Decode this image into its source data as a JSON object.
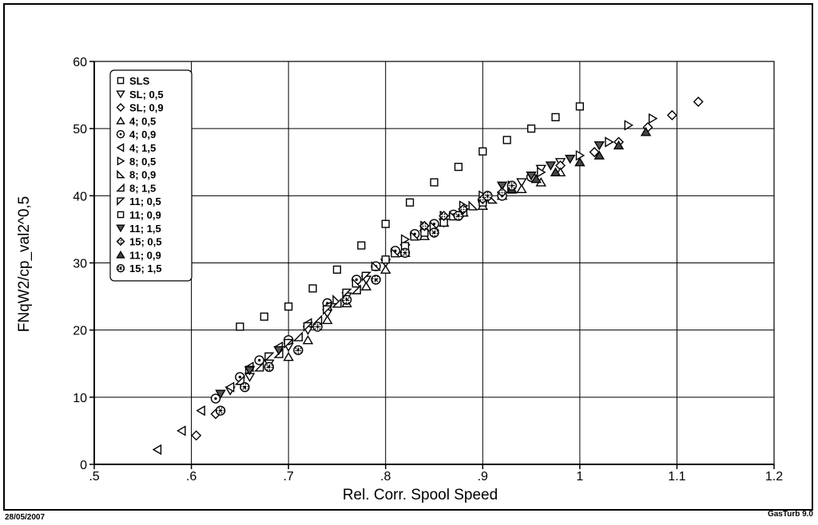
{
  "footer": {
    "date": "28/05/2007",
    "software": "GasTurb 9.0"
  },
  "chart_data": {
    "type": "scatter",
    "title": "",
    "xlabel": "Rel. Corr. Spool Speed",
    "ylabel": "FNqW2/cp_val2^0,5",
    "xlim": [
      0.5,
      1.2
    ],
    "ylim": [
      0,
      60
    ],
    "x_ticks": [
      ".5",
      ".6",
      ".7",
      ".8",
      ".9",
      "1",
      "1.1",
      "1.2"
    ],
    "y_ticks": [
      "0",
      "10",
      "20",
      "30",
      "40",
      "50",
      "60"
    ],
    "grid": true,
    "legend_position": "top-left",
    "series": [
      {
        "name": "SLS",
        "marker": "square",
        "x": [
          0.65,
          0.675,
          0.7,
          0.725,
          0.75,
          0.775,
          0.8,
          0.825,
          0.85,
          0.875,
          0.9,
          0.925,
          0.95,
          0.975,
          1.0
        ],
        "y": [
          20.5,
          22.0,
          23.5,
          26.2,
          29.0,
          32.6,
          35.8,
          39.0,
          42.0,
          44.3,
          46.6,
          48.3,
          50.0,
          51.7,
          53.3
        ]
      },
      {
        "name": "SL; 0,5",
        "marker": "triangle-down",
        "x": [
          0.64,
          0.66,
          0.68,
          0.7,
          0.72,
          0.74,
          0.76,
          0.78,
          0.8,
          0.82,
          0.84,
          0.86,
          0.88,
          0.9,
          0.92,
          0.94,
          0.96,
          0.98
        ],
        "y": [
          11.0,
          13.0,
          15.0,
          17.5,
          20.0,
          22.5,
          25.0,
          27.5,
          30.0,
          32.2,
          34.3,
          36.0,
          37.5,
          38.8,
          40.0,
          42.0,
          44.0,
          45.0
        ]
      },
      {
        "name": "SL; 0,9",
        "marker": "diamond",
        "x": [
          0.605,
          0.625,
          0.98,
          1.015,
          1.04,
          1.07,
          1.095,
          1.122
        ],
        "y": [
          4.3,
          7.5,
          44.5,
          46.5,
          48.0,
          50.2,
          52.0,
          54.0
        ]
      },
      {
        "name": "4; 0,5",
        "marker": "triangle-up",
        "x": [
          0.7,
          0.72,
          0.74,
          0.76,
          0.78,
          0.8,
          0.82,
          0.84,
          0.86,
          0.88,
          0.9,
          0.92,
          0.94,
          0.96,
          0.98
        ],
        "y": [
          16.0,
          18.5,
          21.5,
          24.0,
          26.5,
          29.0,
          31.5,
          34.0,
          36.0,
          37.5,
          38.5,
          40.0,
          41.0,
          42.0,
          43.5
        ]
      },
      {
        "name": "4; 0,9",
        "marker": "circle-dot",
        "x": [
          0.625,
          0.65,
          0.67,
          0.7,
          0.74,
          0.77,
          0.79,
          0.81,
          0.83,
          0.85,
          0.87,
          0.9,
          0.92,
          0.95
        ],
        "y": [
          9.8,
          13.0,
          15.5,
          18.5,
          24.0,
          27.5,
          29.5,
          31.8,
          34.3,
          35.8,
          37.2,
          39.3,
          40.0,
          42.8
        ]
      },
      {
        "name": "4; 1,5",
        "marker": "triangle-left",
        "x": [
          0.565,
          0.59,
          0.61,
          0.64,
          0.66,
          0.69,
          0.72,
          0.74
        ],
        "y": [
          2.2,
          5.0,
          8.0,
          11.5,
          14.5,
          17.5,
          21.0,
          23.5
        ]
      },
      {
        "name": "8; 0,5",
        "marker": "triangle-right",
        "x": [
          0.82,
          0.84,
          0.86,
          0.88,
          0.9,
          0.93,
          0.96,
          1.0,
          1.03,
          1.05,
          1.075
        ],
        "y": [
          33.5,
          35.5,
          37.0,
          38.5,
          40.0,
          41.5,
          43.5,
          46.0,
          48.0,
          50.5,
          51.5
        ]
      },
      {
        "name": "8; 0,9",
        "marker": "triangle-corner",
        "x": [
          0.75,
          0.77,
          0.79,
          0.81,
          0.83,
          0.85,
          0.87,
          0.89,
          0.91,
          0.93
        ],
        "y": [
          24.5,
          27.0,
          29.5,
          31.5,
          34.0,
          35.5,
          37.0,
          38.5,
          39.5,
          41.0
        ]
      },
      {
        "name": "8; 1,5",
        "marker": "triangle-corner-left",
        "x": [
          0.65,
          0.67,
          0.69,
          0.71,
          0.73,
          0.75,
          0.77
        ],
        "y": [
          12.5,
          14.5,
          16.5,
          19.0,
          21.5,
          24.0,
          26.0
        ]
      },
      {
        "name": "11; 0,5",
        "marker": "triangle-down-left",
        "x": [
          0.66,
          0.68,
          0.7,
          0.72,
          0.74,
          0.76,
          0.78
        ],
        "y": [
          14.0,
          16.0,
          18.0,
          20.5,
          23.0,
          25.5,
          28.0
        ]
      },
      {
        "name": "11; 0,9",
        "marker": "square",
        "x": [
          0.8,
          0.82,
          0.84,
          0.86,
          0.88,
          0.9
        ],
        "y": [
          30.5,
          32.5,
          34.5,
          36.0,
          37.5,
          39.0
        ]
      },
      {
        "name": "11; 1,5",
        "marker": "triangle-down-filled",
        "x": [
          0.63,
          0.66,
          0.69,
          0.92,
          0.95,
          0.97,
          0.99,
          1.02
        ],
        "y": [
          10.5,
          14.0,
          17.0,
          41.5,
          43.0,
          44.5,
          45.5,
          47.5
        ]
      },
      {
        "name": "15; 0,5",
        "marker": "diamond-filled",
        "x": [
          0.84,
          0.86,
          0.88,
          0.9,
          0.92
        ],
        "y": [
          35.5,
          37.0,
          38.0,
          39.5,
          40.5
        ]
      },
      {
        "name": "11; 0,9",
        "marker": "triangle-up-filled",
        "x": [
          0.93,
          0.955,
          0.975,
          1.0,
          1.02,
          1.04,
          1.068
        ],
        "y": [
          41.0,
          42.5,
          43.5,
          45.0,
          46.0,
          47.5,
          49.5
        ]
      },
      {
        "name": "15; 1,5",
        "marker": "circle-dot-filled",
        "x": [
          0.63,
          0.655,
          0.68,
          0.71,
          0.73,
          0.76,
          0.79,
          0.82,
          0.85,
          0.875,
          0.905,
          0.93
        ],
        "y": [
          8.0,
          11.5,
          14.5,
          17.0,
          20.5,
          24.5,
          27.5,
          31.5,
          34.5,
          37.0,
          40.0,
          41.5
        ]
      }
    ]
  }
}
